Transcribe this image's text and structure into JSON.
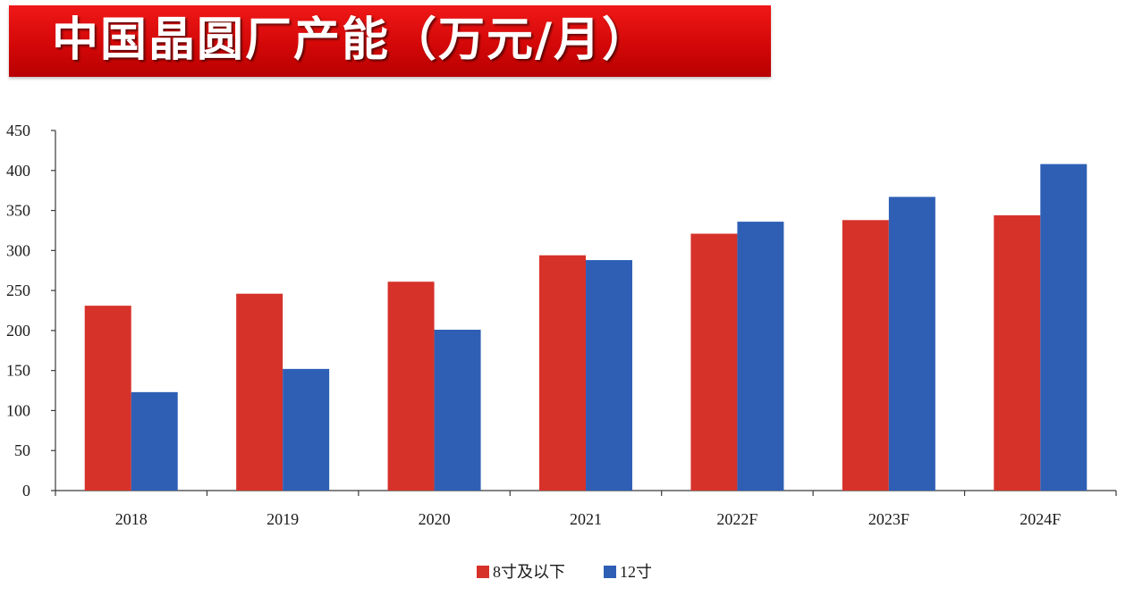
{
  "title": "中国晶圆厂产能（万元/月）",
  "colors": {
    "banner": "#e00c0c",
    "series_8inch": "#d6322a",
    "series_12inch": "#2e5fb5",
    "axis": "#3a3a3a"
  },
  "chart_data": {
    "type": "bar",
    "title": "中国晶圆厂产能（万元/月）",
    "xlabel": "",
    "ylabel": "",
    "categories": [
      "2018",
      "2019",
      "2020",
      "2021",
      "2022F",
      "2023F",
      "2024F"
    ],
    "series": [
      {
        "name": "8寸及以下",
        "values": [
          231,
          246,
          261,
          294,
          321,
          338,
          344
        ]
      },
      {
        "name": "12寸",
        "values": [
          123,
          152,
          201,
          288,
          336,
          367,
          408
        ]
      }
    ],
    "ylim": [
      0,
      450
    ],
    "yticks": [
      0,
      50,
      100,
      150,
      200,
      250,
      300,
      350,
      400,
      450
    ],
    "grid": false,
    "legend_position": "bottom-center"
  }
}
